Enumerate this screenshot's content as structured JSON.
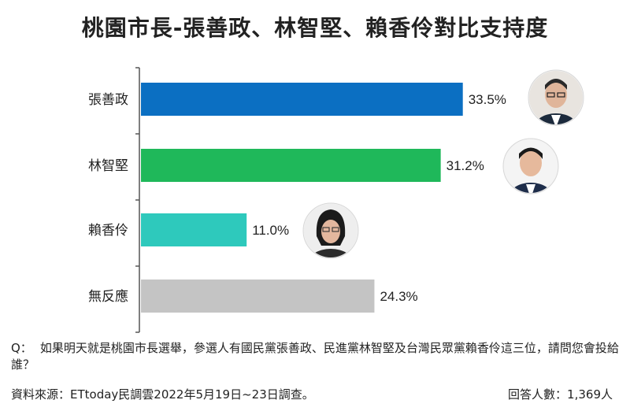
{
  "title": "桃園市長-張善政、林智堅、賴香伶對比支持度",
  "chart_data": {
    "type": "bar",
    "orientation": "horizontal",
    "categories": [
      "張善政",
      "林智堅",
      "賴香伶",
      "無反應"
    ],
    "values": [
      33.5,
      31.2,
      11.0,
      24.3
    ],
    "value_labels": [
      "33.5%",
      "31.2%",
      "11.0%",
      "24.3%"
    ],
    "colors": [
      "#0b6fc2",
      "#1fb85a",
      "#2ec9bc",
      "#c4c4c4"
    ],
    "unit": "%",
    "title": "桃園市長-張善政、林智堅、賴香伶對比支持度",
    "xlabel": "",
    "ylabel": "",
    "grid": false,
    "legend": "none"
  },
  "question": {
    "prefix": "Q：",
    "text": "如果明天就是桃園市長選舉，參選人有國民黨張善政、民進黨林智堅及台灣民眾黨賴香伶這三位，請問您會投給誰？"
  },
  "footer": {
    "source": "資料來源：ETtoday民調雲2022年5月19日~23日調查。",
    "respondents": "回答人數：1,369人"
  }
}
